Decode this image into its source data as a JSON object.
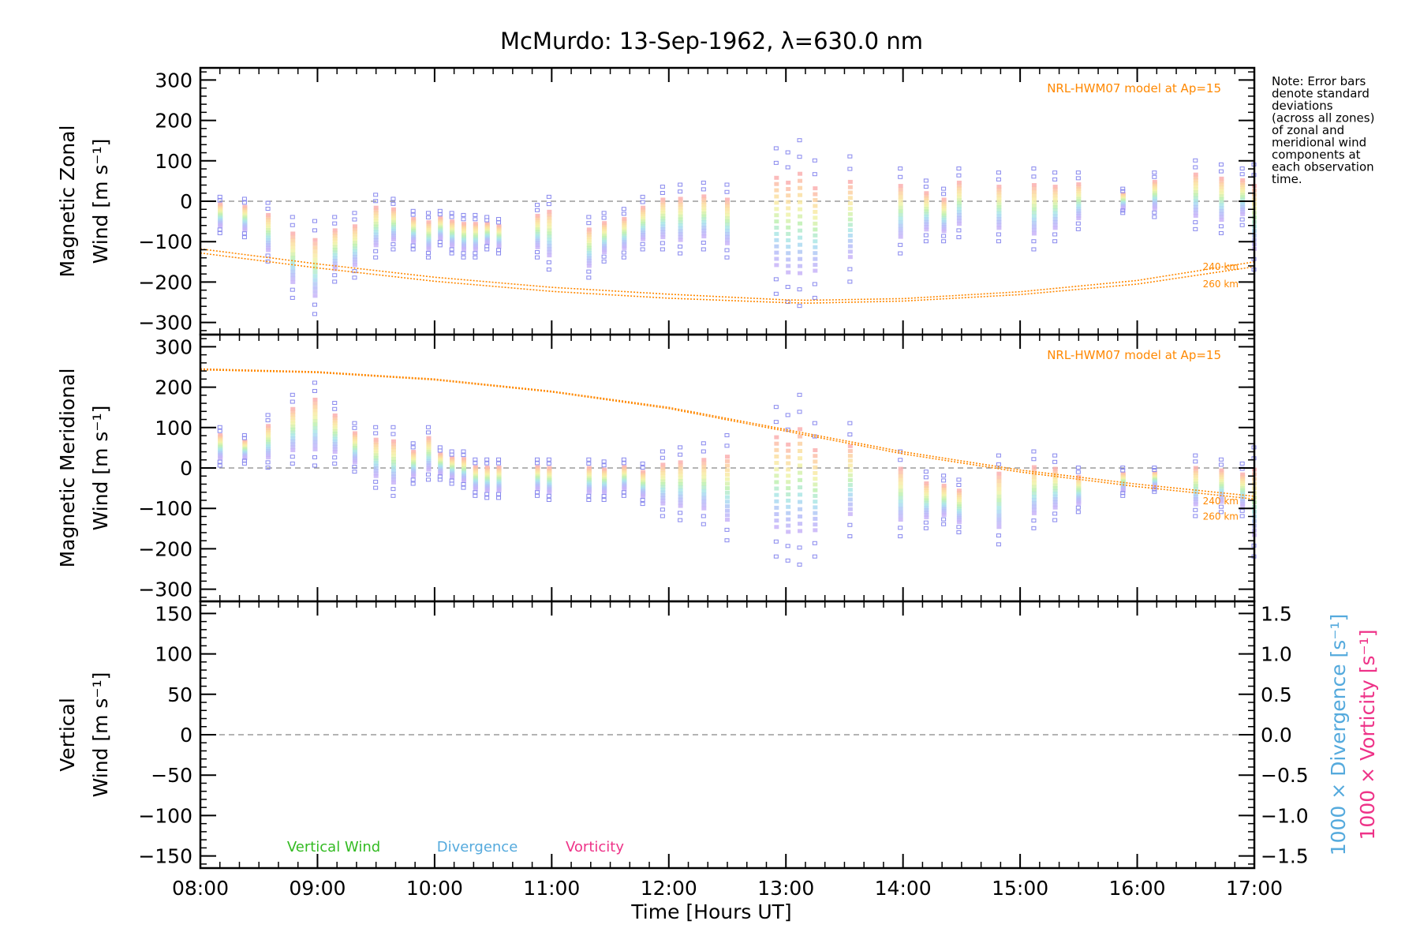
{
  "chart_data": {
    "title": "McMurdo: 13-Sep-1962, λ=630.0 nm",
    "xlabel": "Time [Hours UT]",
    "x_ticks": [
      "08:00",
      "09:00",
      "10:00",
      "11:00",
      "12:00",
      "13:00",
      "14:00",
      "15:00",
      "16:00",
      "17:00"
    ],
    "xlim": [
      8.0,
      17.0
    ],
    "note": [
      "Note: Error bars",
      "denote standard",
      "deviations",
      "(across all zones)",
      "of zonal and",
      "meridional wind",
      "components at",
      "each observation",
      "time."
    ],
    "panels": [
      {
        "id": "zonal",
        "type": "scatter",
        "ylabel_line1": "Magnetic Zonal",
        "ylabel_line2": "Wind [m s⁻¹]",
        "ylim": [
          -330,
          330
        ],
        "yticks": [
          300,
          200,
          100,
          0,
          -100,
          -200,
          -300
        ],
        "ytick_labels": [
          "300",
          "200",
          "100",
          "0",
          "−100",
          "−200",
          "−300"
        ],
        "model_label": "NRL-HWM07 model at Ap=15",
        "model_curves": [
          {
            "name": "240 km",
            "x": [
              8.0,
              9.0,
              10.0,
              11.0,
              12.0,
              13.0,
              13.2,
              14.0,
              15.0,
              16.0,
              17.0
            ],
            "y": [
              -118,
              -155,
              -188,
              -213,
              -230,
              -244,
              -245,
              -241,
              -224,
              -196,
              -150
            ]
          },
          {
            "name": "260 km",
            "x": [
              8.0,
              9.0,
              10.0,
              11.0,
              12.0,
              13.0,
              13.2,
              14.0,
              15.0,
              16.0,
              17.0
            ],
            "y": [
              -128,
              -165,
              -198,
              -223,
              -240,
              -251,
              -252,
              -247,
              -231,
              -205,
              -162
            ]
          }
        ],
        "observations": [
          {
            "t": 8.17,
            "lo": -80,
            "hi": 10
          },
          {
            "t": 8.38,
            "lo": -90,
            "hi": 5
          },
          {
            "t": 8.58,
            "lo": -150,
            "hi": -5
          },
          {
            "t": 8.79,
            "lo": -240,
            "hi": -40
          },
          {
            "t": 8.98,
            "lo": -280,
            "hi": -50
          },
          {
            "t": 9.15,
            "lo": -200,
            "hi": -40
          },
          {
            "t": 9.32,
            "lo": -190,
            "hi": -30
          },
          {
            "t": 9.5,
            "lo": -140,
            "hi": 15
          },
          {
            "t": 9.65,
            "lo": -120,
            "hi": 5
          },
          {
            "t": 9.82,
            "lo": -120,
            "hi": -25
          },
          {
            "t": 9.95,
            "lo": -140,
            "hi": -30
          },
          {
            "t": 10.05,
            "lo": -110,
            "hi": -25
          },
          {
            "t": 10.15,
            "lo": -130,
            "hi": -30
          },
          {
            "t": 10.25,
            "lo": -140,
            "hi": -35
          },
          {
            "t": 10.35,
            "lo": -140,
            "hi": -35
          },
          {
            "t": 10.45,
            "lo": -120,
            "hi": -40
          },
          {
            "t": 10.55,
            "lo": -130,
            "hi": -45
          },
          {
            "t": 10.88,
            "lo": -140,
            "hi": -10
          },
          {
            "t": 10.98,
            "lo": -170,
            "hi": 10
          },
          {
            "t": 11.32,
            "lo": -190,
            "hi": -40
          },
          {
            "t": 11.45,
            "lo": -150,
            "hi": -30
          },
          {
            "t": 11.62,
            "lo": -140,
            "hi": -20
          },
          {
            "t": 11.78,
            "lo": -120,
            "hi": 10
          },
          {
            "t": 11.95,
            "lo": -120,
            "hi": 35
          },
          {
            "t": 12.1,
            "lo": -130,
            "hi": 40
          },
          {
            "t": 12.3,
            "lo": -120,
            "hi": 45
          },
          {
            "t": 12.5,
            "lo": -140,
            "hi": 40
          },
          {
            "t": 12.92,
            "lo": -230,
            "hi": 130
          },
          {
            "t": 13.02,
            "lo": -250,
            "hi": 120
          },
          {
            "t": 13.12,
            "lo": -260,
            "hi": 150
          },
          {
            "t": 13.25,
            "lo": -240,
            "hi": 100
          },
          {
            "t": 13.55,
            "lo": -200,
            "hi": 110
          },
          {
            "t": 13.98,
            "lo": -130,
            "hi": 80
          },
          {
            "t": 14.2,
            "lo": -100,
            "hi": 50
          },
          {
            "t": 14.35,
            "lo": -100,
            "hi": 30
          },
          {
            "t": 14.48,
            "lo": -90,
            "hi": 80
          },
          {
            "t": 14.82,
            "lo": -100,
            "hi": 70
          },
          {
            "t": 15.12,
            "lo": -120,
            "hi": 80
          },
          {
            "t": 15.3,
            "lo": -100,
            "hi": 70
          },
          {
            "t": 15.5,
            "lo": -70,
            "hi": 70
          },
          {
            "t": 15.88,
            "lo": -30,
            "hi": 30
          },
          {
            "t": 16.15,
            "lo": -40,
            "hi": 70
          },
          {
            "t": 16.5,
            "lo": -70,
            "hi": 100
          },
          {
            "t": 16.72,
            "lo": -80,
            "hi": 90
          },
          {
            "t": 16.9,
            "lo": -60,
            "hi": 80
          },
          {
            "t": 17.0,
            "lo": -170,
            "hi": 90
          }
        ]
      },
      {
        "id": "meridional",
        "type": "scatter",
        "ylabel_line1": "Magnetic Meridional",
        "ylabel_line2": "Wind [m s⁻¹]",
        "ylim": [
          -330,
          330
        ],
        "yticks": [
          300,
          200,
          100,
          0,
          -100,
          -200,
          -300
        ],
        "ytick_labels": [
          "300",
          "200",
          "100",
          "0",
          "−100",
          "−200",
          "−300"
        ],
        "model_label": "NRL-HWM07 model at Ap=15",
        "model_curves": [
          {
            "name": "240 km",
            "x": [
              8.0,
              9.0,
              10.0,
              11.0,
              12.0,
              13.0,
              14.0,
              15.0,
              16.0,
              17.0
            ],
            "y": [
              245,
              238,
              220,
              190,
              150,
              95,
              40,
              -5,
              -40,
              -70
            ]
          },
          {
            "name": "260 km",
            "x": [
              8.0,
              9.0,
              10.0,
              11.0,
              12.0,
              13.0,
              14.0,
              15.0,
              16.0,
              17.0
            ],
            "y": [
              243,
              236,
              218,
              188,
              147,
              91,
              35,
              -10,
              -46,
              -77
            ]
          }
        ],
        "observations": [
          {
            "t": 8.17,
            "lo": 5,
            "hi": 100
          },
          {
            "t": 8.38,
            "lo": 10,
            "hi": 80
          },
          {
            "t": 8.58,
            "lo": 0,
            "hi": 130
          },
          {
            "t": 8.79,
            "lo": 10,
            "hi": 180
          },
          {
            "t": 8.98,
            "lo": 5,
            "hi": 210
          },
          {
            "t": 9.15,
            "lo": 10,
            "hi": 160
          },
          {
            "t": 9.32,
            "lo": -10,
            "hi": 110
          },
          {
            "t": 9.5,
            "lo": -50,
            "hi": 100
          },
          {
            "t": 9.65,
            "lo": -70,
            "hi": 100
          },
          {
            "t": 9.82,
            "lo": -40,
            "hi": 60
          },
          {
            "t": 9.95,
            "lo": -30,
            "hi": 100
          },
          {
            "t": 10.05,
            "lo": -30,
            "hi": 50
          },
          {
            "t": 10.15,
            "lo": -40,
            "hi": 40
          },
          {
            "t": 10.25,
            "lo": -50,
            "hi": 40
          },
          {
            "t": 10.35,
            "lo": -70,
            "hi": 20
          },
          {
            "t": 10.45,
            "lo": -75,
            "hi": 20
          },
          {
            "t": 10.55,
            "lo": -75,
            "hi": 20
          },
          {
            "t": 10.88,
            "lo": -70,
            "hi": 20
          },
          {
            "t": 10.98,
            "lo": -80,
            "hi": 20
          },
          {
            "t": 11.32,
            "lo": -80,
            "hi": 20
          },
          {
            "t": 11.45,
            "lo": -80,
            "hi": 15
          },
          {
            "t": 11.62,
            "lo": -70,
            "hi": 20
          },
          {
            "t": 11.78,
            "lo": -90,
            "hi": 10
          },
          {
            "t": 11.95,
            "lo": -120,
            "hi": 40
          },
          {
            "t": 12.1,
            "lo": -130,
            "hi": 50
          },
          {
            "t": 12.3,
            "lo": -140,
            "hi": 60
          },
          {
            "t": 12.5,
            "lo": -180,
            "hi": 80
          },
          {
            "t": 12.92,
            "lo": -220,
            "hi": 150
          },
          {
            "t": 13.02,
            "lo": -230,
            "hi": 130
          },
          {
            "t": 13.12,
            "lo": -240,
            "hi": 180
          },
          {
            "t": 13.25,
            "lo": -220,
            "hi": 110
          },
          {
            "t": 13.55,
            "lo": -170,
            "hi": 110
          },
          {
            "t": 13.98,
            "lo": -170,
            "hi": 40
          },
          {
            "t": 14.2,
            "lo": -150,
            "hi": -10
          },
          {
            "t": 14.35,
            "lo": -140,
            "hi": -20
          },
          {
            "t": 14.48,
            "lo": -160,
            "hi": -30
          },
          {
            "t": 14.82,
            "lo": -190,
            "hi": 30
          },
          {
            "t": 15.12,
            "lo": -150,
            "hi": 40
          },
          {
            "t": 15.3,
            "lo": -130,
            "hi": 30
          },
          {
            "t": 15.5,
            "lo": -110,
            "hi": 0
          },
          {
            "t": 15.88,
            "lo": -70,
            "hi": 0
          },
          {
            "t": 16.15,
            "lo": -60,
            "hi": 0
          },
          {
            "t": 16.5,
            "lo": -120,
            "hi": 30
          },
          {
            "t": 16.72,
            "lo": -110,
            "hi": 20
          },
          {
            "t": 16.9,
            "lo": -120,
            "hi": 10
          },
          {
            "t": 17.0,
            "lo": -220,
            "hi": 50
          }
        ]
      },
      {
        "id": "vertical",
        "type": "line",
        "ylabel_line1": "Vertical",
        "ylabel_line2": "Wind [m s⁻¹]",
        "ylabel_color": "#33bb22",
        "ylim": [
          -165,
          165
        ],
        "yticks": [
          150,
          100,
          50,
          0,
          -50,
          -100,
          -150
        ],
        "ytick_labels": [
          "150",
          "100",
          "50",
          "0",
          "−50",
          "−100",
          "−150"
        ],
        "y2lim": [
          -1.65,
          1.65
        ],
        "y2ticks": [
          1.5,
          1.0,
          0.5,
          0.0,
          -0.5,
          -1.0,
          -1.5
        ],
        "y2tick_labels": [
          "1.5",
          "1.0",
          "0.5",
          "0.0",
          "−0.5",
          "−1.0",
          "−1.5"
        ],
        "y2label_divergence": "1000 × Divergence [s⁻¹]",
        "y2label_vorticity": "1000 × Vorticity [s⁻¹]",
        "legend": [
          {
            "label": "Vertical Wind",
            "color": "#33bb22"
          },
          {
            "label": "Divergence",
            "color": "#55aadd"
          },
          {
            "label": "Vorticity",
            "color": "#ee3388"
          }
        ]
      }
    ],
    "colors": {
      "model": "#ff8800",
      "zero_line": "#888888",
      "outlier": "#8888ee"
    }
  }
}
